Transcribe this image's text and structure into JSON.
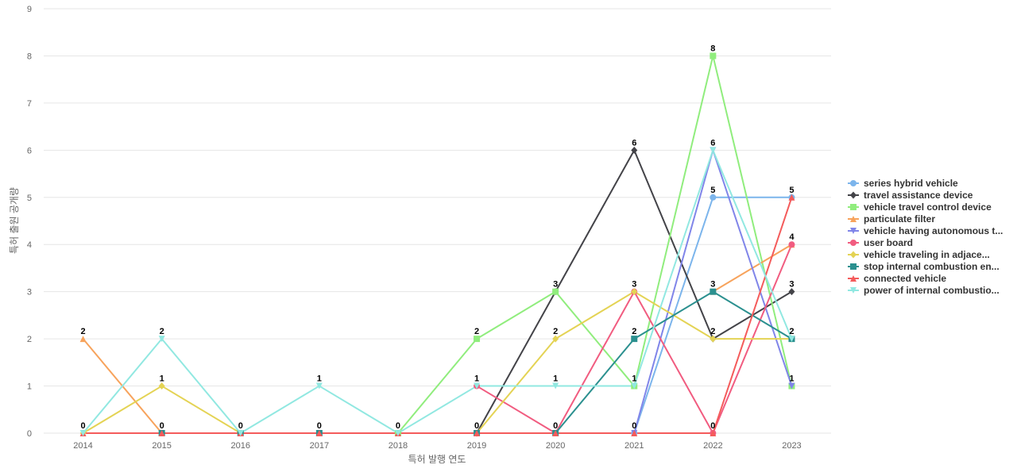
{
  "chart_data": {
    "type": "line",
    "title": "",
    "xlabel": "특허 발행 연도",
    "ylabel": "특허 출원 공개량",
    "ylim": [
      0,
      9
    ],
    "yticks": [
      0,
      1,
      2,
      3,
      4,
      5,
      6,
      7,
      8,
      9
    ],
    "x": [
      "2014",
      "2015",
      "2016",
      "2017",
      "2018",
      "2019",
      "2020",
      "2021",
      "2022",
      "2023"
    ],
    "grid": true,
    "legend_position": "right",
    "series": [
      {
        "name": "series hybrid vehicle",
        "color": "#7cb5ec",
        "marker": "circle",
        "values": [
          null,
          null,
          null,
          null,
          null,
          null,
          null,
          0,
          5,
          5
        ]
      },
      {
        "name": "travel assistance device",
        "color": "#434348",
        "marker": "diamond",
        "values": [
          null,
          null,
          null,
          null,
          null,
          0,
          3,
          6,
          2,
          3
        ]
      },
      {
        "name": "vehicle travel control device",
        "color": "#90ed7d",
        "marker": "square",
        "values": [
          null,
          null,
          null,
          null,
          0,
          2,
          3,
          1,
          8,
          1
        ]
      },
      {
        "name": "particulate filter",
        "color": "#f7a35c",
        "marker": "triangle",
        "values": [
          2,
          0,
          null,
          null,
          null,
          null,
          null,
          null,
          3,
          4
        ]
      },
      {
        "name": "vehicle having autonomous t...",
        "color": "#8085e9",
        "marker": "triangle-down",
        "values": [
          null,
          null,
          null,
          null,
          null,
          null,
          null,
          0,
          6,
          1
        ]
      },
      {
        "name": "user board",
        "color": "#f15c80",
        "marker": "circle",
        "values": [
          null,
          null,
          null,
          null,
          null,
          1,
          0,
          3,
          0,
          4
        ]
      },
      {
        "name": "vehicle traveling in adjace...",
        "color": "#e4d354",
        "marker": "diamond",
        "values": [
          0,
          1,
          0,
          null,
          null,
          0,
          2,
          3,
          2,
          2
        ]
      },
      {
        "name": "stop internal combustion en...",
        "color": "#2b908f",
        "marker": "square",
        "values": [
          null,
          0,
          0,
          0,
          null,
          0,
          0,
          2,
          3,
          2
        ]
      },
      {
        "name": "connected vehicle",
        "color": "#f45b5b",
        "marker": "triangle",
        "values": [
          0,
          0,
          0,
          0,
          0,
          0,
          0,
          0,
          0,
          5
        ]
      },
      {
        "name": "power of internal combustio...",
        "color": "#91e8e1",
        "marker": "triangle-down",
        "values": [
          0,
          2,
          0,
          1,
          0,
          1,
          1,
          1,
          6,
          2
        ]
      }
    ],
    "data_labels": [
      {
        "x": "2014",
        "y": 2,
        "text": "2"
      },
      {
        "x": "2014",
        "y": 0,
        "text": "0"
      },
      {
        "x": "2015",
        "y": 2,
        "text": "2"
      },
      {
        "x": "2015",
        "y": 1,
        "text": "1"
      },
      {
        "x": "2015",
        "y": 0,
        "text": "0"
      },
      {
        "x": "2016",
        "y": 0,
        "text": "0"
      },
      {
        "x": "2017",
        "y": 1,
        "text": "1"
      },
      {
        "x": "2017",
        "y": 0,
        "text": "0"
      },
      {
        "x": "2018",
        "y": 0,
        "text": "0"
      },
      {
        "x": "2019",
        "y": 2,
        "text": "2"
      },
      {
        "x": "2019",
        "y": 1,
        "text": "1"
      },
      {
        "x": "2019",
        "y": 0,
        "text": "0"
      },
      {
        "x": "2020",
        "y": 3,
        "text": "3"
      },
      {
        "x": "2020",
        "y": 2,
        "text": "2"
      },
      {
        "x": "2020",
        "y": 1,
        "text": "1"
      },
      {
        "x": "2020",
        "y": 0,
        "text": "0"
      },
      {
        "x": "2021",
        "y": 6,
        "text": "6"
      },
      {
        "x": "2021",
        "y": 3,
        "text": "3"
      },
      {
        "x": "2021",
        "y": 2,
        "text": "2"
      },
      {
        "x": "2021",
        "y": 1,
        "text": "1"
      },
      {
        "x": "2021",
        "y": 0,
        "text": "0"
      },
      {
        "x": "2022",
        "y": 8,
        "text": "8"
      },
      {
        "x": "2022",
        "y": 6,
        "text": "6"
      },
      {
        "x": "2022",
        "y": 5,
        "text": "5"
      },
      {
        "x": "2022",
        "y": 3,
        "text": "3"
      },
      {
        "x": "2022",
        "y": 2,
        "text": "2"
      },
      {
        "x": "2022",
        "y": 0,
        "text": "0"
      },
      {
        "x": "2023",
        "y": 5,
        "text": "5"
      },
      {
        "x": "2023",
        "y": 4,
        "text": "4"
      },
      {
        "x": "2023",
        "y": 3,
        "text": "3"
      },
      {
        "x": "2023",
        "y": 2,
        "text": "2"
      },
      {
        "x": "2023",
        "y": 1,
        "text": "1"
      }
    ]
  }
}
